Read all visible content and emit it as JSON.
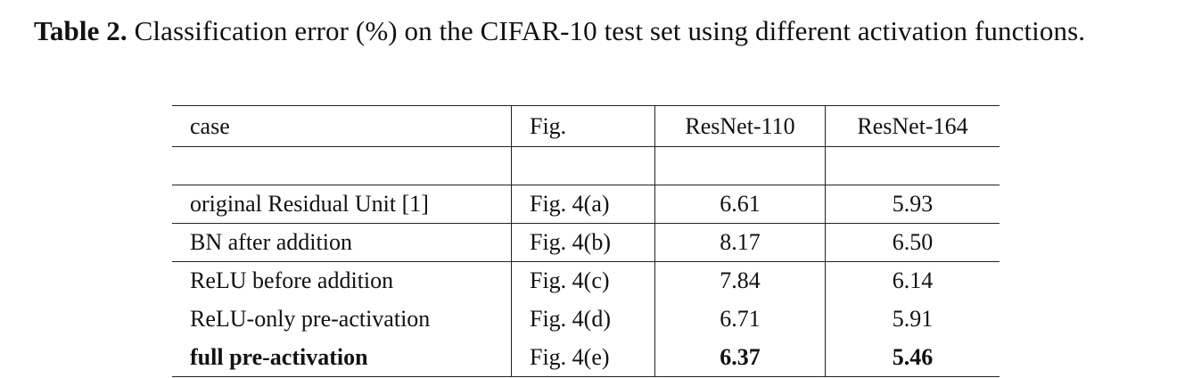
{
  "caption": {
    "label": "Table 2.",
    "text": "Classification error (%) on the CIFAR-10 test set using different activation functions."
  },
  "table": {
    "headers": {
      "case": "case",
      "fig": "Fig.",
      "r110": "ResNet-110",
      "r164": "ResNet-164"
    },
    "rows": [
      {
        "case": "original Residual Unit [1]",
        "fig": "Fig. 4(a)",
        "r110": "6.61",
        "r164": "5.93"
      },
      {
        "case": "BN after addition",
        "fig": "Fig. 4(b)",
        "r110": "8.17",
        "r164": "6.50"
      },
      {
        "case": "ReLU before addition",
        "fig": "Fig. 4(c)",
        "r110": "7.84",
        "r164": "6.14"
      },
      {
        "case": "ReLU-only pre-activation",
        "fig": "Fig. 4(d)",
        "r110": "6.71",
        "r164": "5.91"
      },
      {
        "case": "full pre-activation",
        "fig": "Fig. 4(e)",
        "r110": "6.37",
        "r164": "5.46"
      }
    ]
  }
}
